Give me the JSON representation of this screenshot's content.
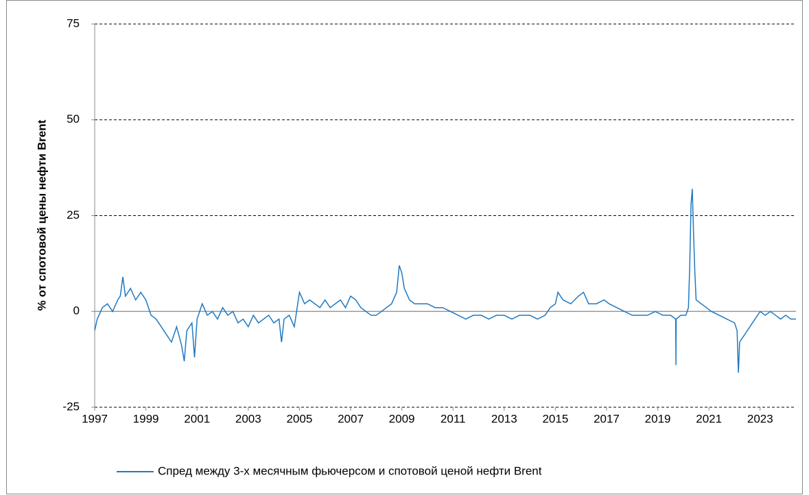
{
  "chart_data": {
    "type": "line",
    "ylabel": "% от спотовой цены нефти Brent",
    "x": [
      1997.0,
      1997.1,
      1997.3,
      1997.5,
      1997.7,
      1997.9,
      1998.0,
      1998.1,
      1998.2,
      1998.4,
      1998.6,
      1998.8,
      1999.0,
      1999.2,
      1999.4,
      1999.6,
      1999.8,
      2000.0,
      2000.2,
      2000.4,
      2000.5,
      2000.6,
      2000.8,
      2000.9,
      2001.0,
      2001.2,
      2001.4,
      2001.6,
      2001.8,
      2002.0,
      2002.2,
      2002.4,
      2002.6,
      2002.8,
      2003.0,
      2003.2,
      2003.4,
      2003.6,
      2003.8,
      2004.0,
      2004.2,
      2004.3,
      2004.4,
      2004.6,
      2004.8,
      2005.0,
      2005.2,
      2005.4,
      2005.6,
      2005.8,
      2006.0,
      2006.2,
      2006.4,
      2006.6,
      2006.8,
      2007.0,
      2007.2,
      2007.4,
      2007.6,
      2007.8,
      2008.0,
      2008.2,
      2008.4,
      2008.6,
      2008.8,
      2008.9,
      2009.0,
      2009.1,
      2009.3,
      2009.5,
      2009.7,
      2010.0,
      2010.3,
      2010.6,
      2010.9,
      2011.2,
      2011.5,
      2011.8,
      2012.1,
      2012.4,
      2012.7,
      2013.0,
      2013.3,
      2013.6,
      2014.0,
      2014.3,
      2014.6,
      2014.8,
      2015.0,
      2015.1,
      2015.3,
      2015.6,
      2015.9,
      2016.1,
      2016.3,
      2016.6,
      2016.9,
      2017.1,
      2017.4,
      2017.7,
      2018.0,
      2018.3,
      2018.6,
      2018.9,
      2019.2,
      2019.5,
      2019.7,
      2019.71,
      2019.72,
      2019.9,
      2020.1,
      2020.2,
      2020.25,
      2020.3,
      2020.35,
      2020.4,
      2020.45,
      2020.5,
      2020.7,
      2020.9,
      2021.1,
      2021.4,
      2021.7,
      2022.0,
      2022.1,
      2022.15,
      2022.2,
      2022.4,
      2022.6,
      2022.8,
      2023.0,
      2023.2,
      2023.4,
      2023.6,
      2023.8,
      2024.0,
      2024.2,
      2024.4
    ],
    "series": [
      {
        "name": "Спред между 3-х месячным фьючерсом и спотовой ценой нефти Brent",
        "color": "#1f78c1",
        "values": [
          -5,
          -2,
          1,
          2,
          0,
          3,
          4,
          9,
          4,
          6,
          3,
          5,
          3,
          -1,
          -2,
          -4,
          -6,
          -8,
          -4,
          -9,
          -13,
          -5,
          -3,
          -12,
          -2,
          2,
          -1,
          0,
          -2,
          1,
          -1,
          0,
          -3,
          -2,
          -4,
          -1,
          -3,
          -2,
          -1,
          -3,
          -2,
          -8,
          -2,
          -1,
          -4,
          5,
          2,
          3,
          2,
          1,
          3,
          1,
          2,
          3,
          1,
          4,
          3,
          1,
          0,
          -1,
          -1,
          0,
          1,
          2,
          5,
          12,
          10,
          6,
          3,
          2,
          2,
          2,
          1,
          1,
          0,
          -1,
          -2,
          -1,
          -1,
          -2,
          -1,
          -1,
          -2,
          -1,
          -1,
          -2,
          -1,
          1,
          2,
          5,
          3,
          2,
          4,
          5,
          2,
          2,
          3,
          2,
          1,
          0,
          -1,
          -1,
          -1,
          0,
          -1,
          -1,
          -2,
          -14,
          -2,
          -1,
          -1,
          1,
          12,
          28,
          32,
          20,
          10,
          3,
          2,
          1,
          0,
          -1,
          -2,
          -3,
          -5,
          -16,
          -8,
          -6,
          -4,
          -2,
          0,
          -1,
          0,
          -1,
          -2,
          -1,
          -2,
          -2
        ]
      }
    ],
    "xlim": [
      1997,
      2024.4
    ],
    "xticks": [
      1997,
      1999,
      2001,
      2003,
      2005,
      2007,
      2009,
      2011,
      2013,
      2015,
      2017,
      2019,
      2021,
      2023
    ],
    "ylim": [
      -25,
      75
    ],
    "yticks": [
      -25,
      0,
      25,
      50,
      75
    ],
    "grid": true,
    "legend": "bottom"
  }
}
